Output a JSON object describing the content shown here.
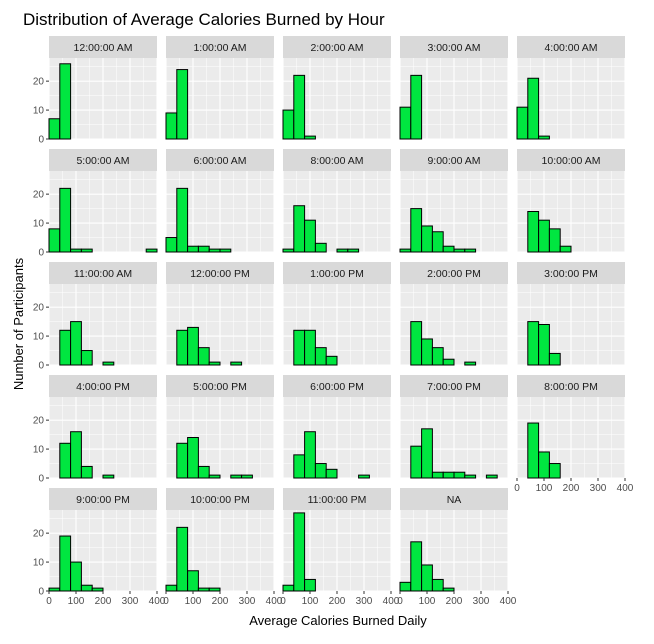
{
  "chart_data": {
    "type": "bar",
    "title": "Distribution of Average Calories Burned by Hour",
    "xlabel": "Average Calories Burned Daily",
    "ylabel": "Number of Participants",
    "xlim": [
      0,
      400
    ],
    "ylim": [
      0,
      28
    ],
    "x_ticks": [
      0,
      100,
      200,
      300,
      400
    ],
    "y_ticks": [
      0,
      10,
      20
    ],
    "bin_edges": [
      0,
      40,
      80,
      120,
      160,
      200,
      240,
      280,
      320,
      360,
      400
    ],
    "colors": {
      "bar_fill": "#00E640",
      "bar_stroke": "#000000",
      "panel_bg": "#EBEBEB",
      "strip_bg": "#D9D9D9",
      "grid": "#FFFFFF"
    },
    "facets": [
      {
        "label": "12:00:00 AM",
        "counts": [
          7,
          26,
          0,
          0,
          0,
          0,
          0,
          0,
          0,
          0
        ]
      },
      {
        "label": "1:00:00 AM",
        "counts": [
          9,
          24,
          0,
          0,
          0,
          0,
          0,
          0,
          0,
          0
        ]
      },
      {
        "label": "2:00:00 AM",
        "counts": [
          10,
          22,
          1,
          0,
          0,
          0,
          0,
          0,
          0,
          0
        ]
      },
      {
        "label": "3:00:00 AM",
        "counts": [
          11,
          22,
          0,
          0,
          0,
          0,
          0,
          0,
          0,
          0
        ]
      },
      {
        "label": "4:00:00 AM",
        "counts": [
          11,
          21,
          1,
          0,
          0,
          0,
          0,
          0,
          0,
          0
        ]
      },
      {
        "label": "5:00:00 AM",
        "counts": [
          8,
          22,
          1,
          1,
          0,
          0,
          0,
          0,
          0,
          1
        ]
      },
      {
        "label": "6:00:00 AM",
        "counts": [
          5,
          22,
          2,
          2,
          1,
          1,
          0,
          0,
          0,
          0
        ]
      },
      {
        "label": "8:00:00 AM",
        "counts": [
          1,
          16,
          11,
          3,
          0,
          1,
          1,
          0,
          0,
          0
        ]
      },
      {
        "label": "9:00:00 AM",
        "counts": [
          1,
          15,
          9,
          7,
          2,
          1,
          1,
          0,
          0,
          0
        ]
      },
      {
        "label": "10:00:00 AM",
        "counts": [
          0,
          14,
          11,
          8,
          2,
          0,
          0,
          0,
          0,
          0
        ]
      },
      {
        "label": "11:00:00 AM",
        "counts": [
          0,
          12,
          15,
          5,
          0,
          1,
          0,
          0,
          0,
          0
        ]
      },
      {
        "label": "12:00:00 PM",
        "counts": [
          0,
          12,
          13,
          6,
          1,
          0,
          1,
          0,
          0,
          0
        ]
      },
      {
        "label": "1:00:00 PM",
        "counts": [
          0,
          12,
          12,
          6,
          3,
          0,
          0,
          0,
          0,
          0
        ]
      },
      {
        "label": "2:00:00 PM",
        "counts": [
          0,
          15,
          9,
          6,
          2,
          0,
          1,
          0,
          0,
          0
        ]
      },
      {
        "label": "3:00:00 PM",
        "counts": [
          0,
          15,
          14,
          4,
          0,
          0,
          0,
          0,
          0,
          0
        ]
      },
      {
        "label": "4:00:00 PM",
        "counts": [
          0,
          12,
          16,
          4,
          0,
          1,
          0,
          0,
          0,
          0
        ]
      },
      {
        "label": "5:00:00 PM",
        "counts": [
          0,
          12,
          14,
          4,
          1,
          0,
          1,
          1,
          0,
          0
        ]
      },
      {
        "label": "6:00:00 PM",
        "counts": [
          0,
          8,
          16,
          5,
          3,
          0,
          0,
          1,
          0,
          0
        ]
      },
      {
        "label": "7:00:00 PM",
        "counts": [
          0,
          11,
          17,
          2,
          2,
          2,
          1,
          0,
          1,
          0
        ]
      },
      {
        "label": "8:00:00 PM",
        "counts": [
          0,
          19,
          9,
          5,
          0,
          0,
          0,
          0,
          0,
          0
        ]
      },
      {
        "label": "9:00:00 PM",
        "counts": [
          1,
          19,
          10,
          2,
          1,
          0,
          0,
          0,
          0,
          0
        ]
      },
      {
        "label": "10:00:00 PM",
        "counts": [
          2,
          22,
          7,
          1,
          1,
          0,
          0,
          0,
          0,
          0
        ]
      },
      {
        "label": "11:00:00 PM",
        "counts": [
          2,
          27,
          4,
          0,
          0,
          0,
          0,
          0,
          0,
          0
        ]
      },
      {
        "label": "NA",
        "counts": [
          3,
          17,
          9,
          4,
          1,
          0,
          0,
          0,
          0,
          0
        ]
      }
    ]
  }
}
